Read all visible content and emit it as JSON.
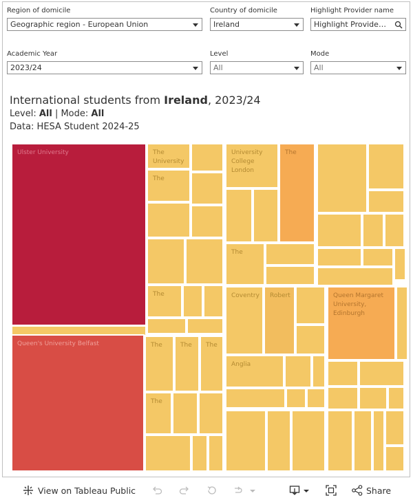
{
  "filters": {
    "region": {
      "label": "Region of domicile",
      "value": "Geographic region - European Union"
    },
    "country": {
      "label": "Country of domicile",
      "value": "Ireland"
    },
    "highlight": {
      "label": "Highlight Provider name",
      "placeholder": "Highlight Provider ..."
    },
    "year": {
      "label": "Academic Year",
      "value": "2023/24"
    },
    "level": {
      "label": "Level",
      "value": "All"
    },
    "mode": {
      "label": "Mode",
      "value": "All"
    }
  },
  "heading": {
    "prefix": "International students from ",
    "country": "Ireland",
    "sep": ", ",
    "year": "2023/24",
    "level_label": "Level: ",
    "level_value": "All",
    "divider": " | ",
    "mode_label": "Mode: ",
    "mode_value": "All",
    "source": "Data: HESA Student 2024-25"
  },
  "treemap": {
    "labels": {
      "ulster": "Ulster University",
      "queens": "Queen's University Belfast",
      "ucl": "University College London",
      "qmu": "Queen Margaret University, Edinburgh",
      "coventry": "Coventry",
      "robert": "Robert",
      "anglia": "Anglia",
      "the": "The",
      "the_university": "The University"
    },
    "colors": {
      "ulster": "#b81d3c",
      "queens": "#d84d45",
      "orange": "#f6ab53",
      "gold": "#f2bd5e",
      "default": "#f4c866"
    }
  },
  "toolbar": {
    "view_label": "View on Tableau Public",
    "share_label": "Share"
  }
}
